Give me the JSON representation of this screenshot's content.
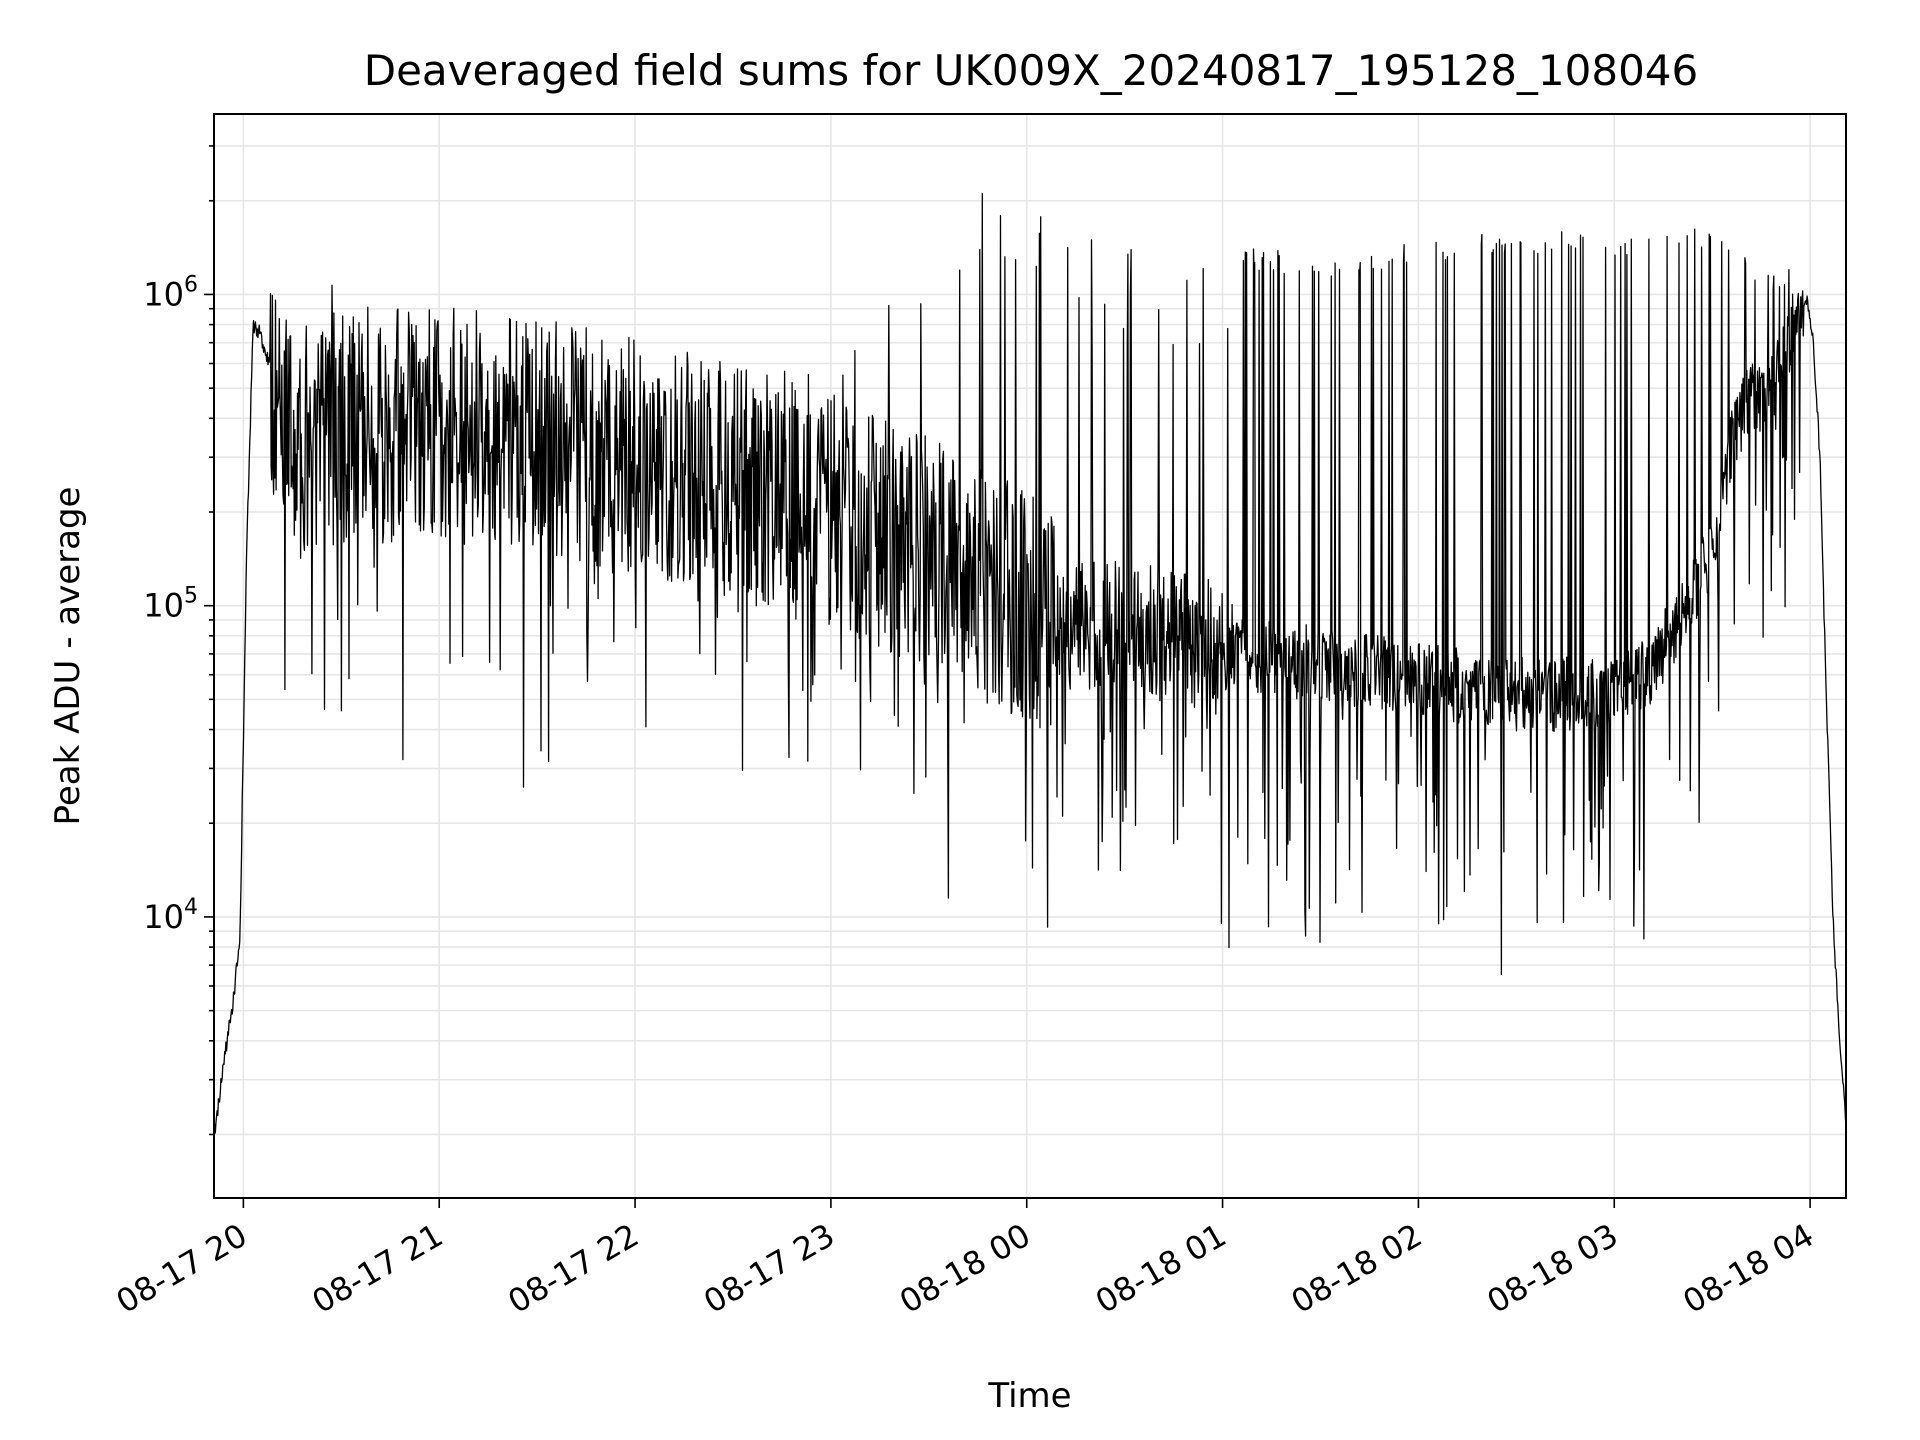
{
  "chart_data": {
    "type": "line",
    "title": "Deaveraged field sums for UK009X_20240817_195128_108046",
    "xlabel": "Time",
    "ylabel": "Peak ADU - average",
    "y_scale": "log",
    "ylim": [
      1250,
      3800000
    ],
    "xlim": [
      "2024-08-17 19:51",
      "2024-08-18 04:11"
    ],
    "grid": true,
    "line_color": "#000000",
    "x_ticks": [
      {
        "at": "2024-08-17 20:00",
        "label": "08-17 20"
      },
      {
        "at": "2024-08-17 21:00",
        "label": "08-17 21"
      },
      {
        "at": "2024-08-17 22:00",
        "label": "08-17 22"
      },
      {
        "at": "2024-08-17 23:00",
        "label": "08-17 23"
      },
      {
        "at": "2024-08-18 00:00",
        "label": "08-18 00"
      },
      {
        "at": "2024-08-18 01:00",
        "label": "08-18 01"
      },
      {
        "at": "2024-08-18 02:00",
        "label": "08-18 02"
      },
      {
        "at": "2024-08-18 03:00",
        "label": "08-18 03"
      },
      {
        "at": "2024-08-18 04:00",
        "label": "08-18 04"
      }
    ],
    "y_ticks": [
      {
        "value": 10000,
        "base": "10",
        "exp": "4"
      },
      {
        "value": 100000,
        "base": "10",
        "exp": "5"
      },
      {
        "value": 1000000,
        "base": "10",
        "exp": "6"
      }
    ],
    "series": [
      {
        "baseline": {
          "x": [
            "2024-08-17 19:51",
            "2024-08-17 19:53",
            "2024-08-17 19:55",
            "2024-08-17 19:57",
            "2024-08-17 19:59",
            "2024-08-17 20:01",
            "2024-08-17 20:03",
            "2024-08-17 20:05",
            "2024-08-17 20:08",
            "2024-08-17 20:12",
            "2024-08-17 20:16",
            "2024-08-17 20:20",
            "2024-08-17 20:30",
            "2024-08-17 21:00",
            "2024-08-17 21:30",
            "2024-08-17 22:00",
            "2024-08-17 22:30",
            "2024-08-17 23:00",
            "2024-08-17 23:30",
            "2024-08-17 23:50",
            "2024-08-18 00:10",
            "2024-08-18 00:30",
            "2024-08-18 01:00",
            "2024-08-18 01:30",
            "2024-08-18 02:00",
            "2024-08-18 02:30",
            "2024-08-18 03:00",
            "2024-08-18 03:10",
            "2024-08-18 03:20",
            "2024-08-18 03:30",
            "2024-08-18 03:35",
            "2024-08-18 03:40",
            "2024-08-18 03:45",
            "2024-08-18 03:50",
            "2024-08-18 03:55",
            "2024-08-18 03:59",
            "2024-08-18 04:01",
            "2024-08-18 04:03",
            "2024-08-18 04:05",
            "2024-08-18 04:07",
            "2024-08-18 04:09",
            "2024-08-18 04:11"
          ],
          "y": [
            2000,
            2800,
            4000,
            5500,
            9000,
            150000,
            800000,
            750000,
            600000,
            400000,
            320000,
            350000,
            380000,
            380000,
            360000,
            300000,
            250000,
            200000,
            150000,
            110000,
            90000,
            85000,
            72000,
            65000,
            58000,
            52000,
            52000,
            60000,
            90000,
            150000,
            300000,
            450000,
            480000,
            550000,
            800000,
            950000,
            700000,
            300000,
            50000,
            10000,
            4000,
            2200
          ]
        },
        "spikes": {
          "x": [
            "2024-08-17 20:05",
            "2024-08-17 20:15",
            "2024-08-17 20:25",
            "2024-08-17 20:30",
            "2024-08-17 20:45",
            "2024-08-17 21:10",
            "2024-08-17 21:40",
            "2024-08-17 22:15",
            "2024-08-17 22:55",
            "2024-08-17 23:10",
            "2024-08-17 23:20",
            "2024-08-17 23:35",
            "2024-08-17 23:43",
            "2024-08-17 23:50",
            "2024-08-18 00:05",
            "2024-08-18 00:20",
            "2024-08-18 00:55",
            "2024-08-18 01:15",
            "2024-08-18 01:35",
            "2024-08-18 02:00",
            "2024-08-18 02:25",
            "2024-08-18 02:45",
            "2024-08-18 03:05",
            "2024-08-18 03:25",
            "2024-08-18 03:50"
          ],
          "y": [
            1400000,
            1000000,
            1400000,
            900000,
            950000,
            750000,
            650000,
            600000,
            600000,
            2000000,
            2000000,
            2000000,
            2700000,
            2400000,
            2000000,
            1500000,
            1400000,
            1400000,
            1300000,
            1500000,
            1600000,
            1600000,
            1600000,
            1650000,
            1200000
          ]
        }
      }
    ]
  }
}
